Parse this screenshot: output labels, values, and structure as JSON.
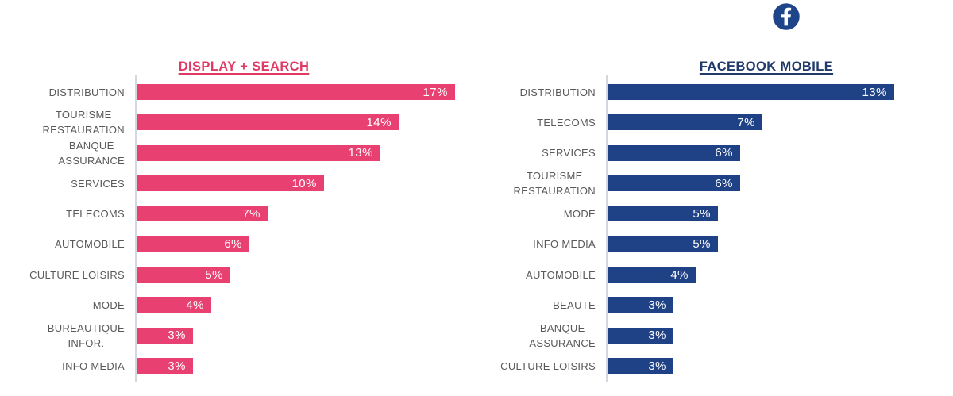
{
  "page": {
    "background": "#FFFFFF",
    "label_color": "#595959",
    "axis_color": "#D3D7DE"
  },
  "chart_data": [
    {
      "type": "bar",
      "orientation": "horizontal",
      "title": "DISPLAY + SEARCH",
      "title_color": "#E03A64",
      "bar_color": "#E84070",
      "value_label_color": "#FFFFFF",
      "unit": "%",
      "xlim": [
        0,
        17
      ],
      "grid": false,
      "legend": false,
      "categories": [
        "DISTRIBUTION",
        "TOURISME RESTAURATION",
        "BANQUE ASSURANCE",
        "SERVICES",
        "TELECOMS",
        "AUTOMOBILE",
        "CULTURE LOISIRS",
        "MODE",
        "BUREAUTIQUE INFOR.",
        "INFO MEDIA"
      ],
      "category_lines": [
        [
          "DISTRIBUTION"
        ],
        [
          "TOURISME",
          "RESTAURATION"
        ],
        [
          "BANQUE",
          "ASSURANCE"
        ],
        [
          "SERVICES"
        ],
        [
          "TELECOMS"
        ],
        [
          "AUTOMOBILE"
        ],
        [
          "CULTURE LOISIRS"
        ],
        [
          "MODE"
        ],
        [
          "BUREAUTIQUE",
          "INFOR."
        ],
        [
          "INFO MEDIA"
        ]
      ],
      "values": [
        17,
        14,
        13,
        10,
        7,
        6,
        5,
        4,
        3,
        3
      ],
      "data_labels": [
        "17%",
        "14%",
        "13%",
        "10%",
        "7%",
        "6%",
        "5%",
        "4%",
        "3%",
        "3%"
      ]
    },
    {
      "type": "bar",
      "orientation": "horizontal",
      "title": "FACEBOOK MOBILE",
      "icon": "facebook-icon",
      "icon_color": "#1E4489",
      "title_color": "#203A69",
      "bar_color": "#1F4287",
      "value_label_color": "#FFFFFF",
      "unit": "%",
      "xlim": [
        0,
        13
      ],
      "grid": false,
      "legend": false,
      "categories": [
        "DISTRIBUTION",
        "TELECOMS",
        "SERVICES",
        "TOURISME RESTAURATION",
        "MODE",
        "INFO MEDIA",
        "AUTOMOBILE",
        "BEAUTE",
        "BANQUE ASSURANCE",
        "CULTURE LOISIRS"
      ],
      "category_lines": [
        [
          "DISTRIBUTION"
        ],
        [
          "TELECOMS"
        ],
        [
          "SERVICES"
        ],
        [
          "TOURISME",
          "RESTAURATION"
        ],
        [
          "MODE"
        ],
        [
          "INFO MEDIA"
        ],
        [
          "AUTOMOBILE"
        ],
        [
          "BEAUTE"
        ],
        [
          "BANQUE",
          "ASSURANCE"
        ],
        [
          "CULTURE LOISIRS"
        ]
      ],
      "values": [
        13,
        7,
        6,
        6,
        5,
        5,
        4,
        3,
        3,
        3
      ],
      "data_labels": [
        "13%",
        "7%",
        "6%",
        "6%",
        "5%",
        "5%",
        "4%",
        "3%",
        "3%",
        "3%"
      ]
    }
  ]
}
